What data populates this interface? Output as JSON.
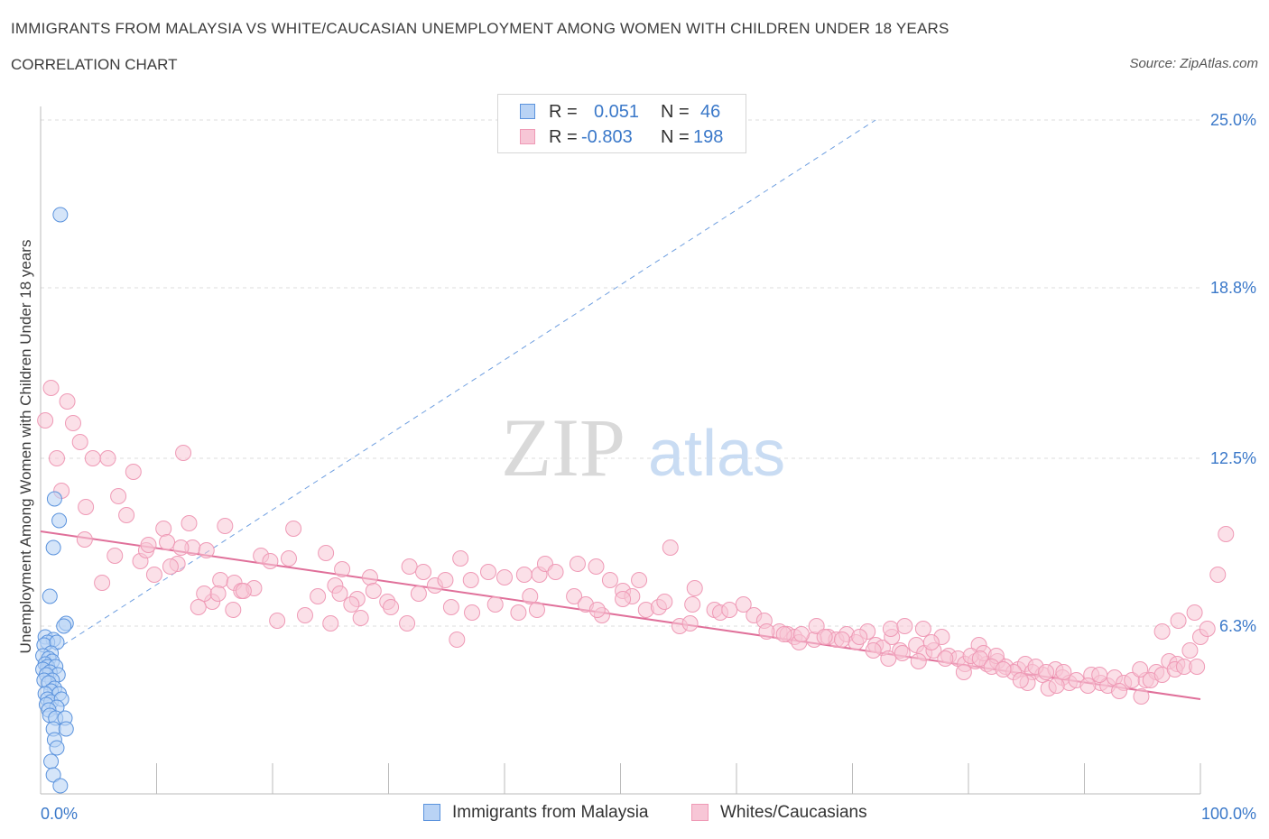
{
  "header": {
    "title": "IMMIGRANTS FROM MALAYSIA VS WHITE/CAUCASIAN UNEMPLOYMENT AMONG WOMEN WITH CHILDREN UNDER 18 YEARS",
    "subtitle": "CORRELATION CHART",
    "source": "Source: ZipAtlas.com"
  },
  "watermark": {
    "zip": "ZIP",
    "atlas": "atlas"
  },
  "legend": {
    "series1": {
      "r_label": "R =",
      "r_value": "0.051",
      "n_label": "N =",
      "n_value": "46"
    },
    "series2": {
      "r_label": "R =",
      "r_value": "-0.803",
      "n_label": "N =",
      "n_value": "198"
    }
  },
  "bottom_legend": {
    "series1": "Immigrants from Malaysia",
    "series2": "Whites/Caucasians"
  },
  "colors": {
    "blue_fill": "#b9d3f5",
    "blue_stroke": "#5b93dd",
    "blue_line": "#2f6fcf",
    "pink_fill": "#f7c6d6",
    "pink_stroke": "#ef9ab6",
    "pink_line": "#e0709a",
    "tick_text": "#3a78c9",
    "grid": "#dddddd"
  },
  "chart_data": {
    "type": "scatter",
    "title": "IMMIGRANTS FROM MALAYSIA VS WHITE/CAUCASIAN UNEMPLOYMENT AMONG WOMEN WITH CHILDREN UNDER 18 YEARS",
    "xlabel": "",
    "ylabel": "Unemployment Among Women with Children Under 18 years",
    "xlim": [
      0,
      100
    ],
    "ylim": [
      0,
      25
    ],
    "x_tick_labels": [
      "0.0%",
      "100.0%"
    ],
    "y_ticks": [
      6.3,
      12.5,
      18.8,
      25.0
    ],
    "y_tick_labels": [
      "6.3%",
      "12.5%",
      "18.8%",
      "25.0%"
    ],
    "grid": "horizontal dashed",
    "legend_position": "top-center",
    "series": [
      {
        "name": "Immigrants from Malaysia",
        "r": 0.051,
        "n": 46,
        "trend_solid": [
          [
            0.1,
            4.8
          ],
          [
            0.5,
            5.2
          ]
        ],
        "trend_dashed": [
          [
            0.5,
            5.2
          ],
          [
            72,
            25
          ]
        ],
        "points": [
          [
            1.7,
            21.5
          ],
          [
            1.2,
            11.0
          ],
          [
            1.6,
            10.2
          ],
          [
            1.1,
            9.2
          ],
          [
            0.8,
            7.4
          ],
          [
            2.2,
            6.4
          ],
          [
            2.0,
            6.3
          ],
          [
            0.4,
            5.9
          ],
          [
            1.1,
            5.8
          ],
          [
            0.6,
            5.7
          ],
          [
            0.3,
            5.6
          ],
          [
            1.4,
            5.7
          ],
          [
            0.9,
            5.3
          ],
          [
            0.2,
            5.2
          ],
          [
            0.7,
            5.1
          ],
          [
            1.0,
            5.0
          ],
          [
            0.4,
            4.9
          ],
          [
            0.6,
            4.8
          ],
          [
            1.3,
            4.8
          ],
          [
            0.2,
            4.7
          ],
          [
            0.8,
            4.6
          ],
          [
            1.5,
            4.5
          ],
          [
            0.5,
            4.5
          ],
          [
            1.0,
            4.3
          ],
          [
            0.3,
            4.3
          ],
          [
            0.7,
            4.2
          ],
          [
            1.2,
            4.0
          ],
          [
            0.9,
            3.9
          ],
          [
            1.6,
            3.8
          ],
          [
            0.4,
            3.8
          ],
          [
            0.6,
            3.6
          ],
          [
            0.9,
            3.5
          ],
          [
            1.8,
            3.6
          ],
          [
            0.5,
            3.4
          ],
          [
            1.4,
            3.3
          ],
          [
            0.7,
            3.2
          ],
          [
            0.8,
            3.0
          ],
          [
            1.3,
            2.9
          ],
          [
            2.1,
            2.9
          ],
          [
            1.1,
            2.5
          ],
          [
            2.2,
            2.5
          ],
          [
            1.2,
            2.1
          ],
          [
            1.4,
            1.8
          ],
          [
            0.9,
            1.3
          ],
          [
            1.1,
            0.8
          ],
          [
            1.7,
            0.4
          ]
        ]
      },
      {
        "name": "Whites/Caucasians",
        "r": -0.803,
        "n": 198,
        "trend": [
          [
            0,
            9.8
          ],
          [
            100,
            3.6
          ]
        ],
        "points": [
          [
            0.4,
            13.9
          ],
          [
            0.9,
            15.1
          ],
          [
            2.3,
            14.6
          ],
          [
            1.4,
            12.5
          ],
          [
            2.8,
            13.8
          ],
          [
            1.8,
            11.3
          ],
          [
            3.4,
            13.1
          ],
          [
            4.5,
            12.5
          ],
          [
            5.8,
            12.5
          ],
          [
            8.0,
            12.0
          ],
          [
            12.3,
            12.7
          ],
          [
            3.9,
            10.7
          ],
          [
            6.7,
            11.1
          ],
          [
            7.4,
            10.4
          ],
          [
            3.8,
            9.5
          ],
          [
            6.4,
            8.9
          ],
          [
            8.6,
            8.7
          ],
          [
            9.1,
            9.1
          ],
          [
            9.3,
            9.3
          ],
          [
            10.6,
            9.9
          ],
          [
            12.8,
            10.1
          ],
          [
            10.9,
            9.4
          ],
          [
            11.8,
            8.6
          ],
          [
            13.1,
            9.2
          ],
          [
            14.3,
            9.1
          ],
          [
            15.9,
            10.0
          ],
          [
            9.8,
            8.2
          ],
          [
            11.2,
            8.5
          ],
          [
            12.1,
            9.2
          ],
          [
            5.3,
            7.9
          ],
          [
            14.8,
            7.2
          ],
          [
            14.1,
            7.5
          ],
          [
            15.5,
            8.0
          ],
          [
            16.7,
            7.9
          ],
          [
            17.3,
            7.6
          ],
          [
            18.4,
            7.7
          ],
          [
            19.0,
            8.9
          ],
          [
            19.8,
            8.7
          ],
          [
            21.8,
            9.9
          ],
          [
            21.4,
            8.8
          ],
          [
            24.6,
            9.0
          ],
          [
            23.9,
            7.4
          ],
          [
            22.8,
            6.7
          ],
          [
            20.4,
            6.5
          ],
          [
            17.5,
            7.6
          ],
          [
            13.6,
            7.0
          ],
          [
            15.3,
            7.5
          ],
          [
            16.6,
            6.9
          ],
          [
            25.4,
            7.8
          ],
          [
            26.0,
            8.4
          ],
          [
            25.8,
            7.5
          ],
          [
            27.3,
            7.3
          ],
          [
            25.0,
            6.4
          ],
          [
            29.9,
            7.2
          ],
          [
            31.8,
            8.5
          ],
          [
            30.2,
            7.0
          ],
          [
            32.6,
            7.5
          ],
          [
            31.6,
            6.4
          ],
          [
            28.4,
            8.1
          ],
          [
            28.7,
            7.6
          ],
          [
            26.8,
            7.1
          ],
          [
            27.6,
            6.6
          ],
          [
            33.0,
            8.3
          ],
          [
            34.0,
            7.8
          ],
          [
            34.9,
            8.0
          ],
          [
            36.2,
            8.8
          ],
          [
            35.4,
            7.0
          ],
          [
            37.1,
            8.0
          ],
          [
            38.6,
            8.3
          ],
          [
            37.2,
            6.8
          ],
          [
            39.2,
            7.1
          ],
          [
            40.0,
            8.1
          ],
          [
            41.7,
            8.2
          ],
          [
            41.2,
            6.8
          ],
          [
            43.0,
            8.2
          ],
          [
            42.2,
            7.4
          ],
          [
            43.5,
            8.6
          ],
          [
            44.4,
            8.3
          ],
          [
            35.9,
            5.8
          ],
          [
            46.3,
            8.6
          ],
          [
            46.0,
            7.4
          ],
          [
            47.0,
            7.1
          ],
          [
            47.9,
            8.5
          ],
          [
            49.1,
            8.0
          ],
          [
            48.4,
            6.7
          ],
          [
            50.2,
            7.6
          ],
          [
            51.0,
            7.4
          ],
          [
            51.6,
            8.0
          ],
          [
            52.2,
            6.9
          ],
          [
            53.3,
            7.0
          ],
          [
            53.8,
            7.2
          ],
          [
            42.8,
            6.9
          ],
          [
            48.0,
            6.9
          ],
          [
            50.2,
            7.3
          ],
          [
            54.3,
            9.2
          ],
          [
            55.1,
            6.3
          ],
          [
            56.4,
            7.7
          ],
          [
            56.0,
            6.4
          ],
          [
            56.2,
            7.1
          ],
          [
            58.1,
            6.9
          ],
          [
            58.6,
            6.8
          ],
          [
            59.4,
            6.9
          ],
          [
            60.6,
            7.1
          ],
          [
            61.5,
            6.7
          ],
          [
            62.4,
            6.5
          ],
          [
            63.7,
            6.1
          ],
          [
            64.4,
            6.0
          ],
          [
            65.0,
            5.9
          ],
          [
            65.4,
            5.7
          ],
          [
            66.7,
            5.8
          ],
          [
            67.9,
            5.9
          ],
          [
            68.6,
            5.8
          ],
          [
            69.5,
            6.0
          ],
          [
            70.3,
            5.7
          ],
          [
            71.3,
            6.1
          ],
          [
            72.0,
            5.6
          ],
          [
            72.6,
            5.5
          ],
          [
            73.4,
            5.9
          ],
          [
            74.1,
            5.4
          ],
          [
            75.5,
            5.6
          ],
          [
            76.2,
            5.3
          ],
          [
            77.0,
            5.4
          ],
          [
            78.3,
            5.2
          ],
          [
            79.1,
            5.1
          ],
          [
            79.7,
            4.9
          ],
          [
            80.6,
            5.0
          ],
          [
            81.6,
            4.9
          ],
          [
            82.5,
            5.0
          ],
          [
            83.2,
            4.8
          ],
          [
            84.3,
            4.7
          ],
          [
            84.9,
            4.9
          ],
          [
            85.5,
            4.6
          ],
          [
            86.4,
            4.5
          ],
          [
            87.5,
            4.7
          ],
          [
            88.1,
            4.4
          ],
          [
            88.7,
            4.2
          ],
          [
            89.3,
            4.3
          ],
          [
            90.6,
            4.5
          ],
          [
            91.4,
            4.2
          ],
          [
            92.0,
            4.1
          ],
          [
            92.6,
            4.4
          ],
          [
            93.4,
            4.2
          ],
          [
            94.1,
            4.3
          ],
          [
            95.3,
            4.3
          ],
          [
            94.8,
            4.7
          ],
          [
            96.2,
            4.6
          ],
          [
            97.3,
            5.0
          ],
          [
            98.0,
            4.9
          ],
          [
            99.1,
            5.4
          ],
          [
            100.0,
            5.9
          ],
          [
            96.7,
            6.1
          ],
          [
            98.1,
            6.5
          ],
          [
            99.5,
            6.8
          ],
          [
            100.6,
            6.2
          ],
          [
            101.5,
            8.2
          ],
          [
            102.2,
            9.7
          ],
          [
            73.3,
            6.2
          ],
          [
            74.5,
            6.3
          ],
          [
            76.1,
            6.2
          ],
          [
            77.7,
            5.9
          ],
          [
            80.9,
            5.6
          ],
          [
            81.3,
            5.3
          ],
          [
            82.4,
            5.2
          ],
          [
            83.9,
            4.6
          ],
          [
            85.1,
            4.2
          ],
          [
            86.9,
            4.0
          ],
          [
            87.6,
            4.1
          ],
          [
            88.2,
            4.6
          ],
          [
            90.3,
            4.1
          ],
          [
            91.3,
            4.5
          ],
          [
            93.0,
            3.9
          ],
          [
            94.9,
            3.7
          ],
          [
            95.7,
            4.3
          ],
          [
            96.7,
            4.5
          ],
          [
            97.8,
            4.7
          ],
          [
            98.6,
            4.8
          ],
          [
            99.7,
            4.8
          ],
          [
            62.6,
            6.1
          ],
          [
            64.1,
            6.0
          ],
          [
            65.6,
            6.0
          ],
          [
            66.9,
            6.3
          ],
          [
            67.6,
            5.9
          ],
          [
            69.1,
            5.8
          ],
          [
            70.6,
            5.9
          ],
          [
            71.8,
            5.4
          ],
          [
            73.1,
            5.1
          ],
          [
            74.3,
            5.3
          ],
          [
            75.7,
            5.0
          ],
          [
            76.8,
            5.7
          ],
          [
            78.0,
            5.1
          ],
          [
            79.6,
            4.6
          ],
          [
            80.2,
            5.2
          ],
          [
            81.0,
            5.1
          ],
          [
            82.0,
            4.8
          ],
          [
            83.0,
            4.7
          ],
          [
            84.5,
            4.3
          ],
          [
            85.8,
            4.8
          ],
          [
            86.7,
            4.6
          ]
        ]
      }
    ]
  }
}
